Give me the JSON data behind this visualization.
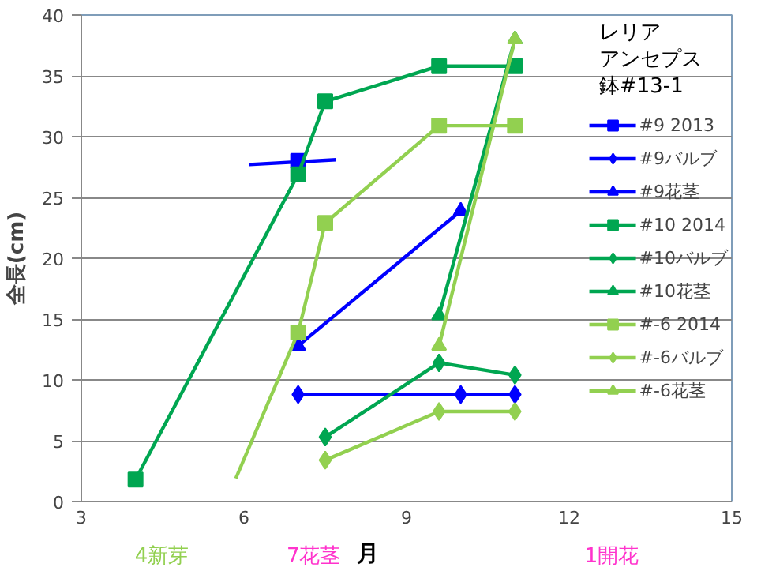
{
  "chart_data": {
    "type": "line",
    "xlabel": "月",
    "ylabel": "全長(cm)",
    "xlim": [
      3,
      15
    ],
    "xticks": [
      3,
      6,
      9,
      12,
      15
    ],
    "ylim": [
      0,
      40
    ],
    "yticks": [
      0,
      5,
      10,
      15,
      20,
      25,
      30,
      35,
      40
    ],
    "grid": "y",
    "legend": "right",
    "annotations": [
      "レリア",
      "アンセプス",
      "鉢#13-1",
      "4新芽",
      "7花茎",
      "1開花"
    ],
    "series": [
      {
        "color": "#0000ff",
        "x": [
          6.1,
          7.7
        ],
        "values": [
          27.7,
          28.1
        ]
      },
      {
        "name": "#9 2013",
        "color": "#0000ff",
        "marker": "square",
        "x": [
          7
        ],
        "values": [
          28
        ]
      },
      {
        "name": "#9バルブ",
        "color": "#0000ff",
        "marker": "diamond",
        "x": [
          7,
          10,
          11
        ],
        "values": [
          8.8,
          8.8,
          8.8
        ]
      },
      {
        "name": "#9花茎",
        "color": "#0000ff",
        "marker": "triangle",
        "x": [
          7,
          10
        ],
        "values": [
          12.8,
          23.9
        ]
      },
      {
        "name": "#10 2014",
        "color": "#00a651",
        "marker": "square",
        "x": [
          4,
          7,
          7.5,
          9.6,
          11
        ],
        "values": [
          1.8,
          26.9,
          32.9,
          35.8,
          35.8
        ]
      },
      {
        "name": "#10バルブ",
        "color": "#00a651",
        "marker": "diamond",
        "x": [
          7.5,
          9.6,
          11
        ],
        "values": [
          5.3,
          11.4,
          10.4
        ]
      },
      {
        "name": "#10花茎",
        "color": "#00a651",
        "marker": "triangle",
        "x": [
          9.6,
          11
        ],
        "values": [
          15.3,
          38
        ]
      },
      {
        "color": "#92d050",
        "x": [
          5.85,
          7
        ],
        "values": [
          1.9,
          13.9
        ]
      },
      {
        "name": "#-6 2014",
        "color": "#92d050",
        "marker": "square",
        "x": [
          7,
          7.5,
          9.6,
          11
        ],
        "values": [
          13.9,
          22.9,
          30.9,
          30.9
        ]
      },
      {
        "name": "#-6バルブ",
        "color": "#92d050",
        "marker": "diamond",
        "x": [
          7.5,
          9.6,
          11
        ],
        "values": [
          3.4,
          7.4,
          7.4
        ]
      },
      {
        "name": "#-6花茎",
        "color": "#92d050",
        "marker": "triangle",
        "x": [
          9.6,
          11
        ],
        "values": [
          12.8,
          38
        ]
      }
    ]
  }
}
